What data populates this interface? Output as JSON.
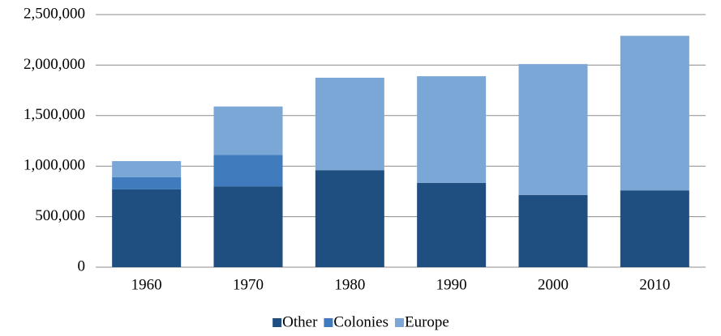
{
  "chart_data": {
    "type": "stacked_bar",
    "categories": [
      "1960",
      "1970",
      "1980",
      "1990",
      "2000",
      "2010"
    ],
    "series": [
      {
        "name": "Other",
        "color": "#1f4e80",
        "values": [
          770000,
          800000,
          960000,
          835000,
          715000,
          760000
        ]
      },
      {
        "name": "Colonies",
        "color": "#3f7bbd",
        "values": [
          120000,
          310000,
          0,
          0,
          0,
          0
        ]
      },
      {
        "name": "Europe",
        "color": "#7ba7d6",
        "values": [
          160000,
          480000,
          915000,
          1055000,
          1295000,
          1530000
        ]
      }
    ],
    "ylim": [
      0,
      2500000
    ],
    "yticks": [
      0,
      {
        "value": 500000,
        "label": "500,000"
      },
      {
        "value": 1000000,
        "label": "1,000,000"
      },
      {
        "value": 1500000,
        "label": "1,500,000"
      },
      {
        "value": 2000000,
        "label": "2,000,000"
      },
      {
        "value": 2500000,
        "label": "2,500,000"
      }
    ],
    "grid": true,
    "legend": "bottom"
  }
}
